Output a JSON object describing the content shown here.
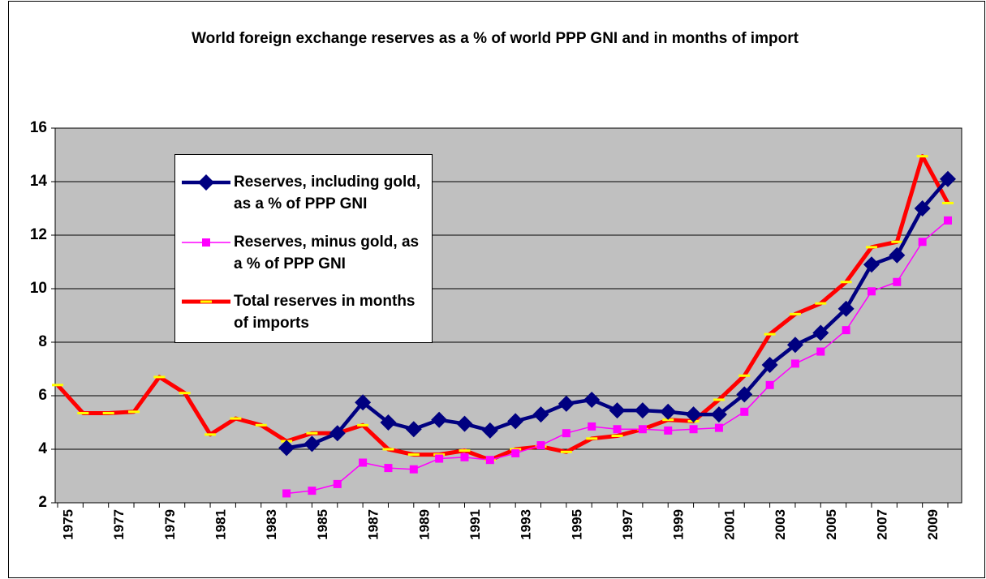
{
  "chart_data": {
    "type": "line",
    "title": "World foreign exchange reserves as a % of world PPP GNI and in months of import",
    "categories": [
      "1975",
      null,
      "1977",
      null,
      "1979",
      null,
      "1981",
      null,
      "1983",
      null,
      "1985",
      null,
      "1987",
      null,
      "1989",
      null,
      "1991",
      null,
      "1993",
      null,
      "1995",
      null,
      "1997",
      null,
      "1999",
      null,
      "2001",
      null,
      "2003",
      null,
      "2005",
      null,
      "2007",
      null,
      "2009",
      null
    ],
    "series": [
      {
        "name": "Reserves, including gold, as a % of PPP GNI",
        "color": "#000080",
        "marker": "diamond",
        "values": [
          null,
          null,
          null,
          null,
          null,
          null,
          null,
          null,
          null,
          4.05,
          4.2,
          4.6,
          5.75,
          5.0,
          4.75,
          5.1,
          4.95,
          4.7,
          5.05,
          5.3,
          5.7,
          5.85,
          5.45,
          5.45,
          5.4,
          5.3,
          5.3,
          6.05,
          7.15,
          7.9,
          8.35,
          9.25,
          10.9,
          11.25,
          13.0,
          14.1
        ]
      },
      {
        "name": "Reserves, minus gold, as a % of PPP GNI",
        "color": "#ff00ff",
        "marker": "square",
        "values": [
          null,
          null,
          null,
          null,
          null,
          null,
          null,
          null,
          null,
          2.35,
          2.45,
          2.7,
          3.5,
          3.3,
          3.25,
          3.65,
          3.7,
          3.6,
          3.85,
          4.15,
          4.6,
          4.85,
          4.75,
          4.75,
          4.7,
          4.75,
          4.8,
          5.4,
          6.4,
          7.2,
          7.65,
          8.45,
          9.9,
          10.25,
          11.75,
          12.55
        ]
      },
      {
        "name": "Total reserves in months of imports",
        "color": "#ff0000",
        "marker": "dash",
        "values": [
          6.4,
          5.35,
          5.35,
          5.4,
          6.7,
          6.1,
          4.55,
          5.15,
          4.9,
          4.3,
          4.6,
          4.6,
          4.9,
          4.0,
          3.8,
          3.8,
          3.95,
          3.6,
          4.0,
          4.1,
          3.9,
          4.4,
          4.5,
          4.75,
          5.1,
          5.05,
          5.85,
          6.75,
          8.3,
          9.05,
          9.45,
          10.25,
          11.55,
          11.75,
          14.95,
          13.2
        ]
      }
    ],
    "ylim": [
      2,
      16
    ],
    "yticks": [
      2,
      4,
      6,
      8,
      10,
      12,
      14,
      16
    ],
    "grid": true
  }
}
